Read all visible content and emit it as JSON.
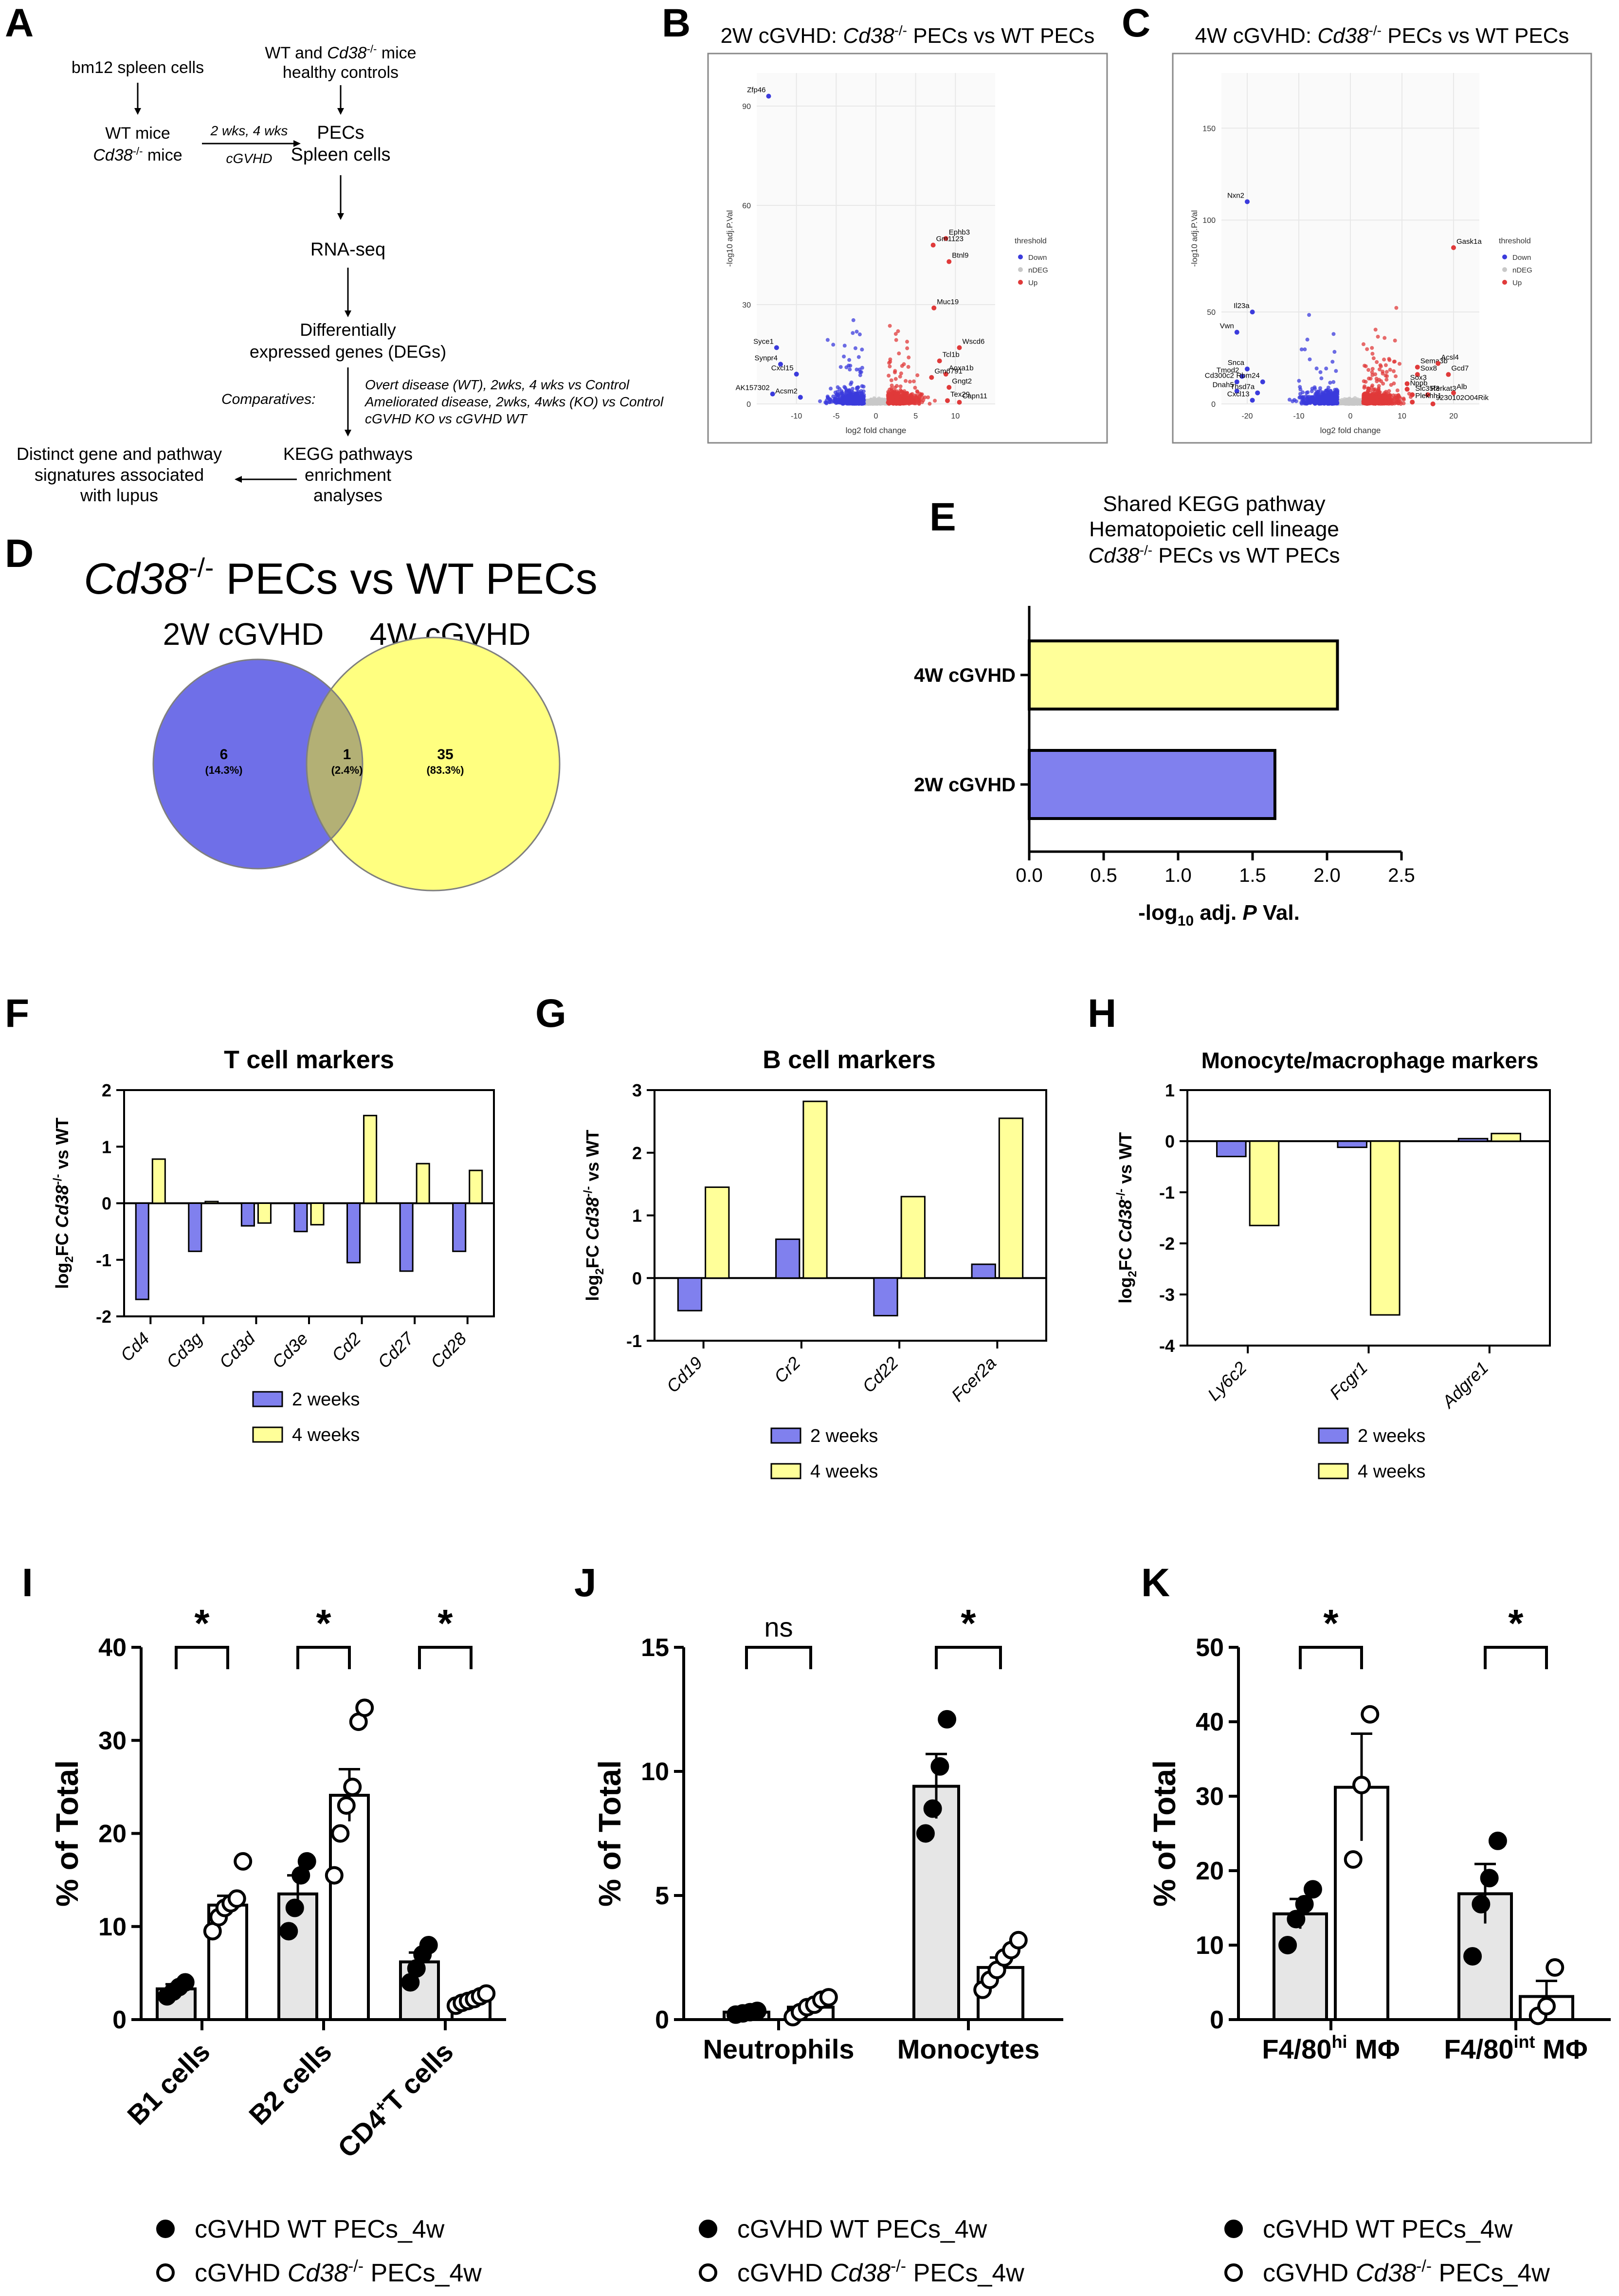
{
  "panel_letters": [
    "A",
    "B",
    "C",
    "D",
    "E",
    "F",
    "G",
    "H",
    "I",
    "J",
    "K"
  ],
  "panel_A": {
    "bm12": "bm12 spleen cells",
    "wt_mice": "WT mice",
    "ko_mice_gene": "Cd38",
    "ko_mice_sup": "-/-",
    "ko_mice_suffix": " mice",
    "controls_1a": "WT and ",
    "controls_1_gene": "Cd38",
    "controls_1_sup": "-/-",
    "controls_1b": " mice",
    "controls_2": "healthy controls",
    "arrow_top": "2 wks, 4 wks",
    "arrow_bottom": "cGVHD",
    "pecs": "PECs",
    "spleen": "Spleen cells",
    "rnaseq": "RNA-seq",
    "deg_1": "Differentially",
    "deg_2": "expressed genes (DEGs)",
    "comparatives": "Comparatives:",
    "comp_1": "Overt disease (WT), 2wks, 4 wks vs Control",
    "comp_2": "Ameliorated disease, 2wks, 4wks  (KO) vs Control",
    "comp_3": "cGVHD KO vs cGVHD WT",
    "kegg_1": "KEGG pathways",
    "kegg_2": "enrichment",
    "kegg_3": "analyses",
    "sig_1": "Distinct gene and pathway",
    "sig_2": "signatures associated",
    "sig_3": "with lupus"
  },
  "chart_data": [
    {
      "id": "B",
      "type": "scatter",
      "title_prefix": "2W cGVHD: ",
      "title_gene": "Cd38",
      "title_sup": "-/-",
      "title_suffix": " PECs vs WT PECs",
      "xlabel": "log2 fold change",
      "ylabel": "-log10 adj.P.Val",
      "xlim": [
        -15,
        15
      ],
      "ylim": [
        0,
        100
      ],
      "xticks": [
        -10,
        -5,
        0,
        5,
        10
      ],
      "yticks": [
        0,
        30,
        60,
        90
      ],
      "legend_title": "threshold",
      "legend": [
        {
          "label": "Down",
          "color": "#3b3bdc"
        },
        {
          "label": "nDEG",
          "color": "#c8c8c8"
        },
        {
          "label": "Up",
          "color": "#e03a3a"
        }
      ],
      "labeled_points": [
        {
          "gene": "Zfp46",
          "x": -13.5,
          "y": 93
        },
        {
          "gene": "Ephb3",
          "x": 8.8,
          "y": 50
        },
        {
          "gene": "Gm1123",
          "x": 7.2,
          "y": 48
        },
        {
          "gene": "Btnl9",
          "x": 9.2,
          "y": 43
        },
        {
          "gene": "Muc19",
          "x": 7.3,
          "y": 29
        },
        {
          "gene": "Wscd6",
          "x": 10.5,
          "y": 17
        },
        {
          "gene": "Syce1",
          "x": -12.5,
          "y": 17
        },
        {
          "gene": "Synpr4",
          "x": -12,
          "y": 12
        },
        {
          "gene": "Tcl1b",
          "x": 8,
          "y": 13
        },
        {
          "gene": "Aoxa1b",
          "x": 8.8,
          "y": 9
        },
        {
          "gene": "Cxcl15",
          "x": -10,
          "y": 9
        },
        {
          "gene": "Gm6791",
          "x": 7,
          "y": 8
        },
        {
          "gene": "AK157302",
          "x": -13,
          "y": 3
        },
        {
          "gene": "Acsm2",
          "x": -9.5,
          "y": 2
        },
        {
          "gene": "Gngt2",
          "x": 9.2,
          "y": 5
        },
        {
          "gene": "Tex29",
          "x": 9,
          "y": 1
        },
        {
          "gene": "Capn11",
          "x": 10.5,
          "y": 0.5
        }
      ]
    },
    {
      "id": "C",
      "type": "scatter",
      "title_prefix": "4W cGVHD: ",
      "title_gene": "Cd38",
      "title_sup": "-/-",
      "title_suffix": " PECs vs WT PECs",
      "xlabel": "log2 fold change",
      "ylabel": "-log10 adj.P.Val",
      "xlim": [
        -25,
        25
      ],
      "ylim": [
        0,
        180
      ],
      "xticks": [
        -20,
        -10,
        0,
        10,
        20
      ],
      "yticks": [
        0,
        50,
        100,
        150
      ],
      "legend_title": "threshold",
      "legend": [
        {
          "label": "Down",
          "color": "#3b3bdc"
        },
        {
          "label": "nDEG",
          "color": "#c8c8c8"
        },
        {
          "label": "Up",
          "color": "#e03a3a"
        }
      ],
      "labeled_points": [
        {
          "gene": "Nxn2",
          "x": -20,
          "y": 110
        },
        {
          "gene": "Gask1a",
          "x": 20,
          "y": 85
        },
        {
          "gene": "Il23a",
          "x": -19,
          "y": 50
        },
        {
          "gene": "Vwn",
          "x": -22,
          "y": 39
        },
        {
          "gene": "Sema3b",
          "x": 13,
          "y": 20
        },
        {
          "gene": "Acsl4",
          "x": 17,
          "y": 22
        },
        {
          "gene": "Sox8",
          "x": 13,
          "y": 16
        },
        {
          "gene": "Snca",
          "x": -20,
          "y": 19
        },
        {
          "gene": "Tmod2",
          "x": -21,
          "y": 15
        },
        {
          "gene": "Cd300c2",
          "x": -22,
          "y": 12
        },
        {
          "gene": "Rbm24",
          "x": -17,
          "y": 12
        },
        {
          "gene": "Dnah5",
          "x": -22,
          "y": 7
        },
        {
          "gene": "Thsd7a",
          "x": -18,
          "y": 6
        },
        {
          "gene": "Cxcl13",
          "x": -19,
          "y": 2
        },
        {
          "gene": "Sox3",
          "x": 11,
          "y": 11
        },
        {
          "gene": "Nppb",
          "x": 11,
          "y": 8
        },
        {
          "gene": "Slc35f3",
          "x": 12,
          "y": 5
        },
        {
          "gene": "Rerkat3",
          "x": 15,
          "y": 5
        },
        {
          "gene": "Plekhh1",
          "x": 12,
          "y": 1
        },
        {
          "gene": "9230102O04Rik",
          "x": 16,
          "y": 0
        },
        {
          "gene": "Alb",
          "x": 20,
          "y": 6
        },
        {
          "gene": "Gcd7",
          "x": 19,
          "y": 16
        }
      ]
    },
    {
      "id": "D",
      "type": "venn",
      "title_gene": "Cd38",
      "title_sup": "-/-",
      "title_suffix": " PECs vs WT PECs",
      "sets": [
        {
          "name": "2W cGVHD",
          "only": "6",
          "only_pct": "(14.3%)",
          "color": "#6f6fe8"
        },
        {
          "name": "4W cGVHD",
          "only": "35",
          "only_pct": "(83.3%)",
          "color": "#ffff80"
        }
      ],
      "overlap": "1",
      "overlap_pct": "(2.4%)",
      "overlap_color": "#b3b075"
    },
    {
      "id": "E",
      "type": "bar",
      "orientation": "horizontal",
      "title_1": "Shared KEGG pathway",
      "title_2": "Hematopoietic cell lineage",
      "title_3_gene": "Cd38",
      "title_3_sup": "-/-",
      "title_3_suffix": " PECs vs WT PECs",
      "categories": [
        "4W cGVHD",
        "2W cGVHD"
      ],
      "values": [
        2.07,
        1.65
      ],
      "colors": [
        "#ffff99",
        "#8080ee"
      ],
      "xlabel_a": "-log",
      "xlabel_sub": "10",
      "xlabel_b": " adj. ",
      "xlabel_p": "P",
      "xlabel_c": " Val.",
      "xlim": [
        0,
        2.5
      ],
      "xticks": [
        "0.0",
        "0.5",
        "1.0",
        "1.5",
        "2.0",
        "2.5"
      ]
    },
    {
      "id": "F",
      "type": "bar",
      "title": "T cell markers",
      "categories": [
        "Cd4",
        "Cd3g",
        "Cd3d",
        "Cd3e",
        "Cd2",
        "Cd27",
        "Cd28"
      ],
      "series": [
        {
          "name": "2 weeks",
          "color": "#8080ee",
          "values": [
            -1.7,
            -0.85,
            -0.4,
            -0.5,
            -1.05,
            -1.2,
            -0.85
          ]
        },
        {
          "name": "4 weeks",
          "color": "#ffff99",
          "values": [
            0.78,
            0.03,
            -0.35,
            -0.38,
            1.55,
            0.7,
            0.58
          ]
        }
      ],
      "ylim": [
        -2,
        2
      ],
      "yticks": [
        "-2",
        "-1",
        "0",
        "1",
        "2"
      ],
      "ylabel_a": "log",
      "ylabel_sub": "2",
      "ylabel_b": "FC ",
      "ylabel_gene": "Cd38",
      "ylabel_sup": "-/-",
      "ylabel_c": " vs WT"
    },
    {
      "id": "G",
      "type": "bar",
      "title": "B cell markers",
      "categories": [
        "Cd19",
        "Cr2",
        "Cd22",
        "Fcer2a"
      ],
      "series": [
        {
          "name": "2 weeks",
          "color": "#8080ee",
          "values": [
            -0.52,
            0.62,
            -0.6,
            0.22
          ]
        },
        {
          "name": "4 weeks",
          "color": "#ffff99",
          "values": [
            1.45,
            2.82,
            1.3,
            2.55
          ]
        }
      ],
      "ylim": [
        -1,
        3
      ],
      "yticks": [
        "-1",
        "0",
        "1",
        "2",
        "3"
      ],
      "ylabel_a": "log",
      "ylabel_sub": "2",
      "ylabel_b": "FC ",
      "ylabel_gene": "Cd38",
      "ylabel_sup": "-/-",
      "ylabel_c": " vs WT"
    },
    {
      "id": "H",
      "type": "bar",
      "title": "Monocyte/macrophage markers",
      "categories": [
        "Ly6c2",
        "Fcgr1",
        "Adgre1"
      ],
      "series": [
        {
          "name": "2 weeks",
          "color": "#8080ee",
          "values": [
            -0.3,
            -0.12,
            0.05
          ]
        },
        {
          "name": "4 weeks",
          "color": "#ffff99",
          "values": [
            -1.65,
            -3.4,
            0.15
          ]
        }
      ],
      "ylim": [
        -4,
        1
      ],
      "yticks": [
        "-4",
        "-3",
        "-2",
        "-1",
        "0",
        "1"
      ],
      "ylabel_a": "log",
      "ylabel_sub": "2",
      "ylabel_b": "FC ",
      "ylabel_gene": "Cd38",
      "ylabel_sup": "-/-",
      "ylabel_c": " vs WT"
    },
    {
      "id": "I",
      "type": "bar",
      "ylabel": "% of Total",
      "ylim": [
        0,
        40
      ],
      "yticks": [
        "0",
        "10",
        "20",
        "30",
        "40"
      ],
      "categories": [
        {
          "label": "B1 cells",
          "sup": ""
        },
        {
          "label": "B2 cells",
          "sup": ""
        },
        {
          "label": "CD4",
          "sup": "+",
          "label_b": "T cells"
        }
      ],
      "series": [
        {
          "name": "WT",
          "means": [
            3.3,
            13.5,
            6.2
          ],
          "sems": [
            0.5,
            2.0,
            1.0
          ],
          "points": [
            [
              2.5,
              3.0,
              3.5,
              4.0
            ],
            [
              9.5,
              12.0,
              15.5,
              17.0
            ],
            [
              4.0,
              5.5,
              7.0,
              8.0
            ]
          ]
        },
        {
          "name": "KO",
          "means": [
            12.3,
            24.1,
            2.2
          ],
          "sems": [
            1.0,
            2.8,
            0.3
          ],
          "points": [
            [
              9.5,
              11.0,
              12.0,
              12.5,
              13.0,
              17.0
            ],
            [
              15.5,
              20.0,
              23.0,
              25.0,
              32.0,
              33.5
            ],
            [
              1.5,
              1.8,
              2.0,
              2.2,
              2.5,
              2.8
            ]
          ]
        }
      ],
      "significance": [
        "*",
        "*",
        "*"
      ],
      "legend": [
        {
          "label_a": "cGVHD WT PECs_4w"
        },
        {
          "label_a": "cGVHD ",
          "gene": "Cd38",
          "sup": "-/-",
          "label_b": " PECs_4w"
        }
      ]
    },
    {
      "id": "J",
      "type": "bar",
      "ylabel": "% of Total",
      "ylim": [
        0,
        15
      ],
      "yticks": [
        "0",
        "5",
        "10",
        "15"
      ],
      "categories": [
        {
          "label": "Neutrophils",
          "sup": ""
        },
        {
          "label": "Monocytes",
          "sup": ""
        }
      ],
      "series": [
        {
          "name": "WT",
          "means": [
            0.3,
            9.4
          ],
          "sems": [
            0.05,
            1.3
          ],
          "points": [
            [
              0.2,
              0.25,
              0.3,
              0.35
            ],
            [
              7.5,
              8.5,
              10.2,
              12.1
            ]
          ]
        },
        {
          "name": "KO",
          "means": [
            0.5,
            2.1
          ],
          "sems": [
            0.15,
            0.4
          ],
          "points": [
            [
              0.1,
              0.3,
              0.5,
              0.6,
              0.8,
              0.9
            ],
            [
              1.2,
              1.6,
              2.0,
              2.5,
              2.8,
              3.2
            ]
          ]
        }
      ],
      "significance": [
        "ns",
        "*"
      ],
      "legend": [
        {
          "label_a": "cGVHD WT PECs_4w"
        },
        {
          "label_a": "cGVHD ",
          "gene": "Cd38",
          "sup": "-/-",
          "label_b": " PECs_4w"
        }
      ]
    },
    {
      "id": "K",
      "type": "bar",
      "ylabel": "% of Total",
      "ylim": [
        0,
        50
      ],
      "yticks": [
        "0",
        "10",
        "20",
        "30",
        "40",
        "50"
      ],
      "categories": [
        {
          "label": "F4/80",
          "sup": "hi",
          "label_b": " MΦ"
        },
        {
          "label": "F4/80",
          "sup": "int",
          "label_b": " MΦ"
        }
      ],
      "series": [
        {
          "name": "WT",
          "means": [
            14.2,
            16.9
          ],
          "sems": [
            2.0,
            4.0
          ],
          "points": [
            [
              10.0,
              13.5,
              15.5,
              17.5
            ],
            [
              8.5,
              15.5,
              19.0,
              24.0
            ]
          ]
        },
        {
          "name": "KO",
          "means": [
            31.2,
            3.1
          ],
          "sems": [
            7.2,
            2.1
          ],
          "points": [
            [
              21.5,
              31.5,
              41.0
            ],
            [
              0.5,
              1.8,
              7.0
            ]
          ]
        }
      ],
      "significance": [
        "*",
        "*"
      ],
      "legend": [
        {
          "label_a": "cGVHD WT PECs_4w"
        },
        {
          "label_a": "cGVHD ",
          "gene": "Cd38",
          "sup": "-/-",
          "label_b": " PECs_4w"
        }
      ]
    }
  ],
  "legend_fgh": {
    "week2": "2 weeks",
    "week4": "4 weeks"
  }
}
